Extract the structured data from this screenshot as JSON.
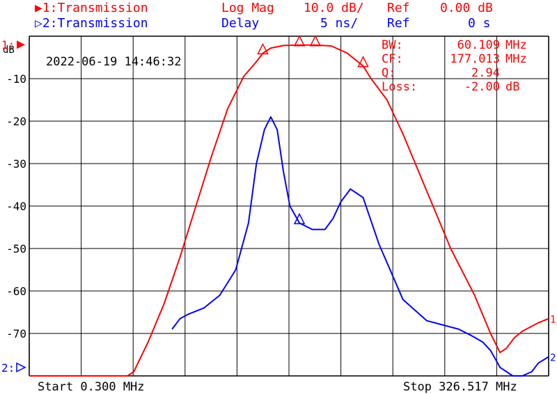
{
  "header": {
    "ch1_label": "▶1:Transmission",
    "ch1_format": "Log Mag",
    "ch1_scale": "10.0 dB/",
    "ch1_ref_label": "Ref",
    "ch1_ref_value": "0.00 dB",
    "ch2_label": "▷2:Transmission",
    "ch2_format": "Delay",
    "ch2_scale": "5 ns/",
    "ch2_ref_label": "Ref",
    "ch2_ref_value": "0 s"
  },
  "timestamp": "2022-06-19 14:46:32",
  "readout": {
    "bw_label": "BW:",
    "bw_value": "60.109",
    "bw_unit": "MHz",
    "cf_label": "CF:",
    "cf_value": "177.013",
    "cf_unit": "MHz",
    "q_label": "Q:",
    "q_value": "2.94",
    "loss_label": "Loss:",
    "loss_value": "-2.00",
    "loss_unit": "dB"
  },
  "footer": {
    "start": "Start 0.300 MHz",
    "stop": "Stop 326.517 MHz"
  },
  "chart_data": {
    "type": "line",
    "y_unit_label": "dB",
    "ref_marker_1": "1:",
    "ref_marker_2": "2:",
    "y_tick_labels": [
      "-10",
      "-20",
      "-30",
      "-40",
      "-50",
      "-60",
      "-70"
    ],
    "y_ticks": [
      -10,
      -20,
      -30,
      -40,
      -50,
      -60,
      -70
    ],
    "xlim": [
      0.3,
      326.517
    ],
    "ylim": [
      -80,
      0
    ],
    "grid": true,
    "colors": {
      "ch1": "#ff0000",
      "ch2": "#0000ff",
      "grid": "#000000"
    },
    "series": [
      {
        "name": "1",
        "x": [
          0.3,
          16,
          32,
          48,
          55,
          58,
          62,
          66,
          75,
          85,
          95,
          105,
          115,
          125,
          135,
          143,
          147,
          152,
          160,
          170,
          180,
          190,
          200,
          210,
          215,
          225,
          235,
          245,
          255,
          265,
          280,
          290,
          296,
          300,
          305,
          310,
          315,
          320,
          326.5
        ],
        "values": [
          -80,
          -80,
          -80,
          -80,
          -80,
          -80,
          -80,
          -79,
          -72,
          -63,
          -52,
          -40,
          -28,
          -17,
          -9.5,
          -6,
          -4,
          -2.8,
          -2.2,
          -2.1,
          -2.1,
          -2.3,
          -4,
          -7,
          -10,
          -15,
          -23,
          -32,
          -41,
          -50,
          -61,
          -70,
          -74.5,
          -73.5,
          -71,
          -69.5,
          -68.5,
          -67.5,
          -66.5
        ]
      },
      {
        "name": "2",
        "x": [
          90,
          95,
          100,
          110,
          120,
          130,
          138,
          143,
          148,
          152,
          156,
          160,
          164,
          170,
          178,
          186,
          191,
          196,
          202,
          210,
          220,
          235,
          250,
          265,
          270,
          278,
          285,
          290,
          296,
          304,
          310,
          316,
          320,
          326.5
        ],
        "values": [
          -69,
          -66.5,
          -65.5,
          -64,
          -61,
          -55,
          -44,
          -30,
          -22,
          -19,
          -22,
          -32,
          -40,
          -44,
          -45.5,
          -45.5,
          -43,
          -39,
          -36,
          -38,
          -49,
          -62,
          -67,
          -68.5,
          -69,
          -70.5,
          -72,
          -74,
          -78,
          -80,
          -80,
          -79,
          -77,
          -75.5
        ]
      }
    ]
  }
}
